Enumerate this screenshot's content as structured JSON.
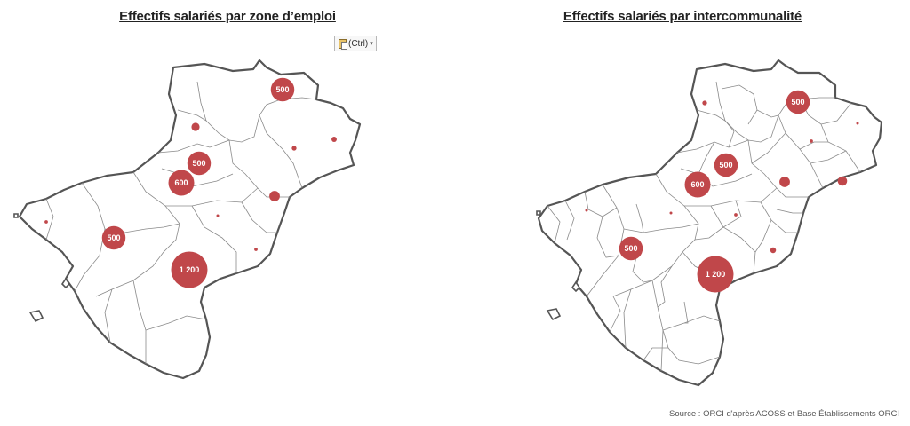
{
  "maps": {
    "left": {
      "title": "Effectifs salariés par zone d’emploi",
      "bubbles": [
        {
          "label": "500",
          "value": 500
        },
        {
          "label": "",
          "value": 20
        },
        {
          "label": "",
          "value": 60
        },
        {
          "label": "",
          "value": 10
        },
        {
          "label": "500",
          "value": 500
        },
        {
          "label": "600",
          "value": 600
        },
        {
          "label": "",
          "value": 100
        },
        {
          "label": "",
          "value": 5
        },
        {
          "label": "",
          "value": 10
        },
        {
          "label": "500",
          "value": 500
        },
        {
          "label": "",
          "value": 25
        },
        {
          "label": "1 200",
          "value": 1200
        }
      ]
    },
    "right": {
      "title": "Effectifs salariés par intercommunalité",
      "bubbles": [
        {
          "label": "500",
          "value": 500
        },
        {
          "label": "",
          "value": 20
        },
        {
          "label": "",
          "value": 10
        },
        {
          "label": "",
          "value": 5
        },
        {
          "label": "500",
          "value": 500
        },
        {
          "label": "",
          "value": 100
        },
        {
          "label": "",
          "value": 80
        },
        {
          "label": "600",
          "value": 600
        },
        {
          "label": "",
          "value": 5
        },
        {
          "label": "",
          "value": 10
        },
        {
          "label": "",
          "value": 5
        },
        {
          "label": "500",
          "value": 500
        },
        {
          "label": "",
          "value": 30
        },
        {
          "label": "1 200",
          "value": 1200
        }
      ]
    }
  },
  "paste_options": {
    "label": "(Ctrl)",
    "icon": "clipboard-icon",
    "arrow": "▾"
  },
  "source": "Source : ORCI d'après ACOSS et Base Établissements ORCI",
  "colors": {
    "bubble": "#c0474a",
    "outline": "#555555",
    "boundaries": "#8a8a8a"
  }
}
